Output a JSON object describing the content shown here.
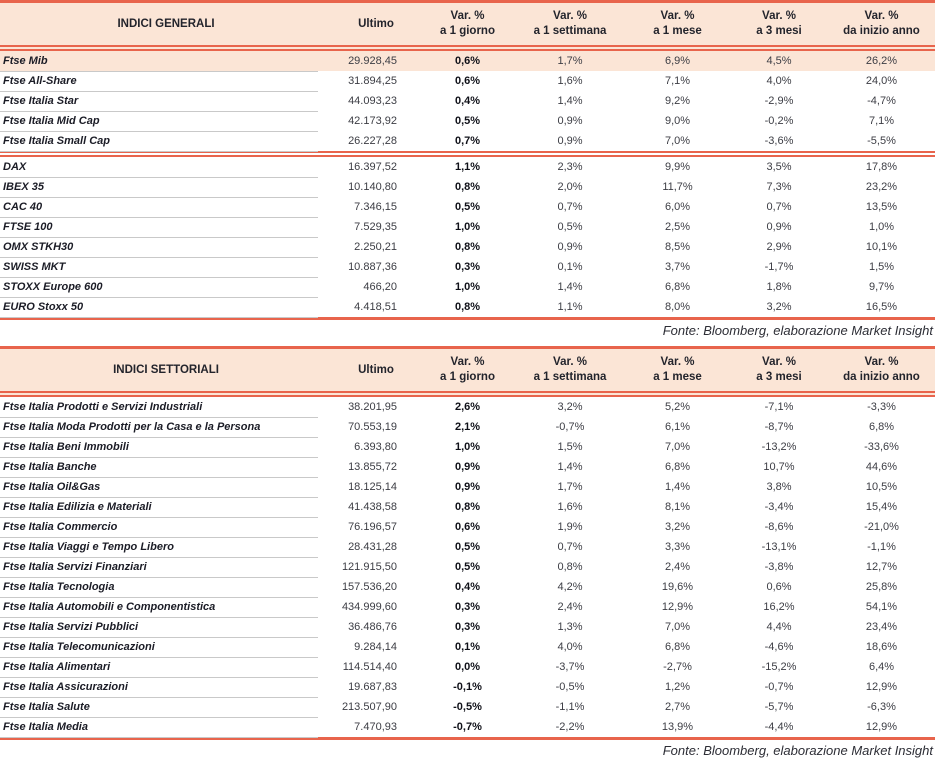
{
  "fonte": "Fonte: Bloomberg, elaborazione Market Insight",
  "colors": {
    "accent_line": "#e8644c",
    "header_bg": "#fbe5d6",
    "highlight_row_bg": "#fbe5d6",
    "row_divider": "#c9c9c9",
    "text_dark": "#1b1c26",
    "text_regular": "#3c3d44"
  },
  "tables": [
    {
      "title": "INDICI GENERALI",
      "headers": {
        "ultimo": "Ultimo",
        "var_top": "Var. %",
        "subs": [
          "a 1 giorno",
          "a 1 settimana",
          "a 1 mese",
          "a 3 mesi",
          "da inizio anno"
        ]
      },
      "groups": [
        {
          "rows": [
            {
              "name": "Ftse Mib",
              "ultimo": "29.928,45",
              "vars": [
                "0,6%",
                "1,7%",
                "6,9%",
                "4,5%",
                "26,2%"
              ],
              "highlight": true
            },
            {
              "name": "Ftse All-Share",
              "ultimo": "31.894,25",
              "vars": [
                "0,6%",
                "1,6%",
                "7,1%",
                "4,0%",
                "24,0%"
              ]
            },
            {
              "name": "Ftse Italia Star",
              "ultimo": "44.093,23",
              "vars": [
                "0,4%",
                "1,4%",
                "9,2%",
                "-2,9%",
                "-4,7%"
              ]
            },
            {
              "name": "Ftse Italia Mid Cap",
              "ultimo": "42.173,92",
              "vars": [
                "0,5%",
                "0,9%",
                "9,0%",
                "-0,2%",
                "7,1%"
              ]
            },
            {
              "name": "Ftse Italia Small Cap",
              "ultimo": "26.227,28",
              "vars": [
                "0,7%",
                "0,9%",
                "7,0%",
                "-3,6%",
                "-5,5%"
              ]
            }
          ]
        },
        {
          "rows": [
            {
              "name": "DAX",
              "ultimo": "16.397,52",
              "vars": [
                "1,1%",
                "2,3%",
                "9,9%",
                "3,5%",
                "17,8%"
              ]
            },
            {
              "name": "IBEX 35",
              "ultimo": "10.140,80",
              "vars": [
                "0,8%",
                "2,0%",
                "11,7%",
                "7,3%",
                "23,2%"
              ]
            },
            {
              "name": "CAC 40",
              "ultimo": "7.346,15",
              "vars": [
                "0,5%",
                "0,7%",
                "6,0%",
                "0,7%",
                "13,5%"
              ]
            },
            {
              "name": "FTSE 100",
              "ultimo": "7.529,35",
              "vars": [
                "1,0%",
                "0,5%",
                "2,5%",
                "0,9%",
                "1,0%"
              ]
            },
            {
              "name": "OMX STKH30",
              "ultimo": "2.250,21",
              "vars": [
                "0,8%",
                "0,9%",
                "8,5%",
                "2,9%",
                "10,1%"
              ]
            },
            {
              "name": "SWISS MKT",
              "ultimo": "10.887,36",
              "vars": [
                "0,3%",
                "0,1%",
                "3,7%",
                "-1,7%",
                "1,5%"
              ]
            },
            {
              "name": "STOXX Europe 600",
              "ultimo": "466,20",
              "vars": [
                "1,0%",
                "1,4%",
                "6,8%",
                "1,8%",
                "9,7%"
              ]
            },
            {
              "name": "EURO Stoxx 50",
              "ultimo": "4.418,51",
              "vars": [
                "0,8%",
                "1,1%",
                "8,0%",
                "3,2%",
                "16,5%"
              ]
            }
          ]
        }
      ]
    },
    {
      "title": "INDICI SETTORIALI",
      "headers": {
        "ultimo": "Ultimo",
        "var_top": "Var. %",
        "subs": [
          "a 1 giorno",
          "a 1 settimana",
          "a 1 mese",
          "a 3 mesi",
          "da inizio anno"
        ]
      },
      "groups": [
        {
          "rows": [
            {
              "name": "Ftse Italia Prodotti e Servizi Industriali",
              "ultimo": "38.201,95",
              "vars": [
                "2,6%",
                "3,2%",
                "5,2%",
                "-7,1%",
                "-3,3%"
              ]
            },
            {
              "name": "Ftse Italia Moda Prodotti per la Casa e la Persona",
              "ultimo": "70.553,19",
              "vars": [
                "2,1%",
                "-0,7%",
                "6,1%",
                "-8,7%",
                "6,8%"
              ]
            },
            {
              "name": "Ftse Italia Beni Immobili",
              "ultimo": "6.393,80",
              "vars": [
                "1,0%",
                "1,5%",
                "7,0%",
                "-13,2%",
                "-33,6%"
              ]
            },
            {
              "name": "Ftse Italia Banche",
              "ultimo": "13.855,72",
              "vars": [
                "0,9%",
                "1,4%",
                "6,8%",
                "10,7%",
                "44,6%"
              ]
            },
            {
              "name": "Ftse Italia Oil&Gas",
              "ultimo": "18.125,14",
              "vars": [
                "0,9%",
                "1,7%",
                "1,4%",
                "3,8%",
                "10,5%"
              ]
            },
            {
              "name": "Ftse Italia Edilizia e Materiali",
              "ultimo": "41.438,58",
              "vars": [
                "0,8%",
                "1,6%",
                "8,1%",
                "-3,4%",
                "15,4%"
              ]
            },
            {
              "name": "Ftse Italia Commercio",
              "ultimo": "76.196,57",
              "vars": [
                "0,6%",
                "1,9%",
                "3,2%",
                "-8,6%",
                "-21,0%"
              ]
            },
            {
              "name": "Ftse Italia Viaggi e Tempo Libero",
              "ultimo": "28.431,28",
              "vars": [
                "0,5%",
                "0,7%",
                "3,3%",
                "-13,1%",
                "-1,1%"
              ]
            },
            {
              "name": "Ftse Italia Servizi Finanziari",
              "ultimo": "121.915,50",
              "vars": [
                "0,5%",
                "0,8%",
                "2,4%",
                "-3,8%",
                "12,7%"
              ]
            },
            {
              "name": "Ftse Italia Tecnologia",
              "ultimo": "157.536,20",
              "vars": [
                "0,4%",
                "4,2%",
                "19,6%",
                "0,6%",
                "25,8%"
              ]
            },
            {
              "name": "Ftse Italia Automobili e Componentistica",
              "ultimo": "434.999,60",
              "vars": [
                "0,3%",
                "2,4%",
                "12,9%",
                "16,2%",
                "54,1%"
              ]
            },
            {
              "name": "Ftse Italia Servizi Pubblici",
              "ultimo": "36.486,76",
              "vars": [
                "0,3%",
                "1,3%",
                "7,0%",
                "4,4%",
                "23,4%"
              ]
            },
            {
              "name": "Ftse Italia Telecomunicazioni",
              "ultimo": "9.284,14",
              "vars": [
                "0,1%",
                "4,0%",
                "6,8%",
                "-4,6%",
                "18,6%"
              ]
            },
            {
              "name": "Ftse Italia Alimentari",
              "ultimo": "114.514,40",
              "vars": [
                "0,0%",
                "-3,7%",
                "-2,7%",
                "-15,2%",
                "6,4%"
              ]
            },
            {
              "name": "Ftse Italia Assicurazioni",
              "ultimo": "19.687,83",
              "vars": [
                "-0,1%",
                "-0,5%",
                "1,2%",
                "-0,7%",
                "12,9%"
              ]
            },
            {
              "name": "Ftse Italia Salute",
              "ultimo": "213.507,90",
              "vars": [
                "-0,5%",
                "-1,1%",
                "2,7%",
                "-5,7%",
                "-6,3%"
              ]
            },
            {
              "name": "Ftse Italia Media",
              "ultimo": "7.470,93",
              "vars": [
                "-0,7%",
                "-2,2%",
                "13,9%",
                "-4,4%",
                "12,9%"
              ]
            }
          ]
        }
      ]
    }
  ]
}
